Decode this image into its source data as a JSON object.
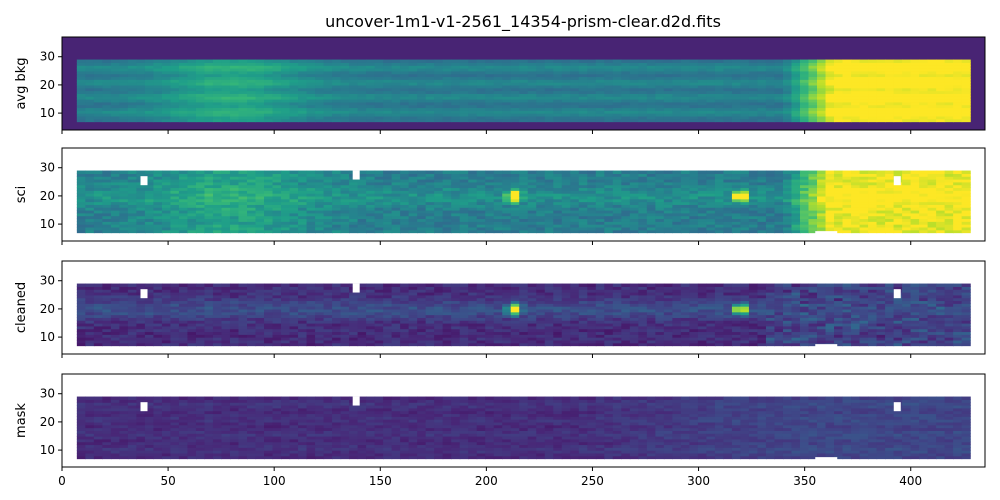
{
  "chart_data": {
    "type": "heatmap",
    "title": "uncover-1m1-v1-2561_14354-prism-clear.d2d.fits",
    "xlim": [
      0,
      435
    ],
    "ylim": [
      4,
      37
    ],
    "x_ticks": [
      0,
      50,
      100,
      150,
      200,
      250,
      300,
      350,
      400
    ],
    "y_ticks": [
      10,
      20,
      30
    ],
    "colormap": "viridis",
    "panels": [
      {
        "label": "avg bkg"
      },
      {
        "label": "sci"
      },
      {
        "label": "cleaned"
      },
      {
        "label": "mask"
      }
    ]
  }
}
